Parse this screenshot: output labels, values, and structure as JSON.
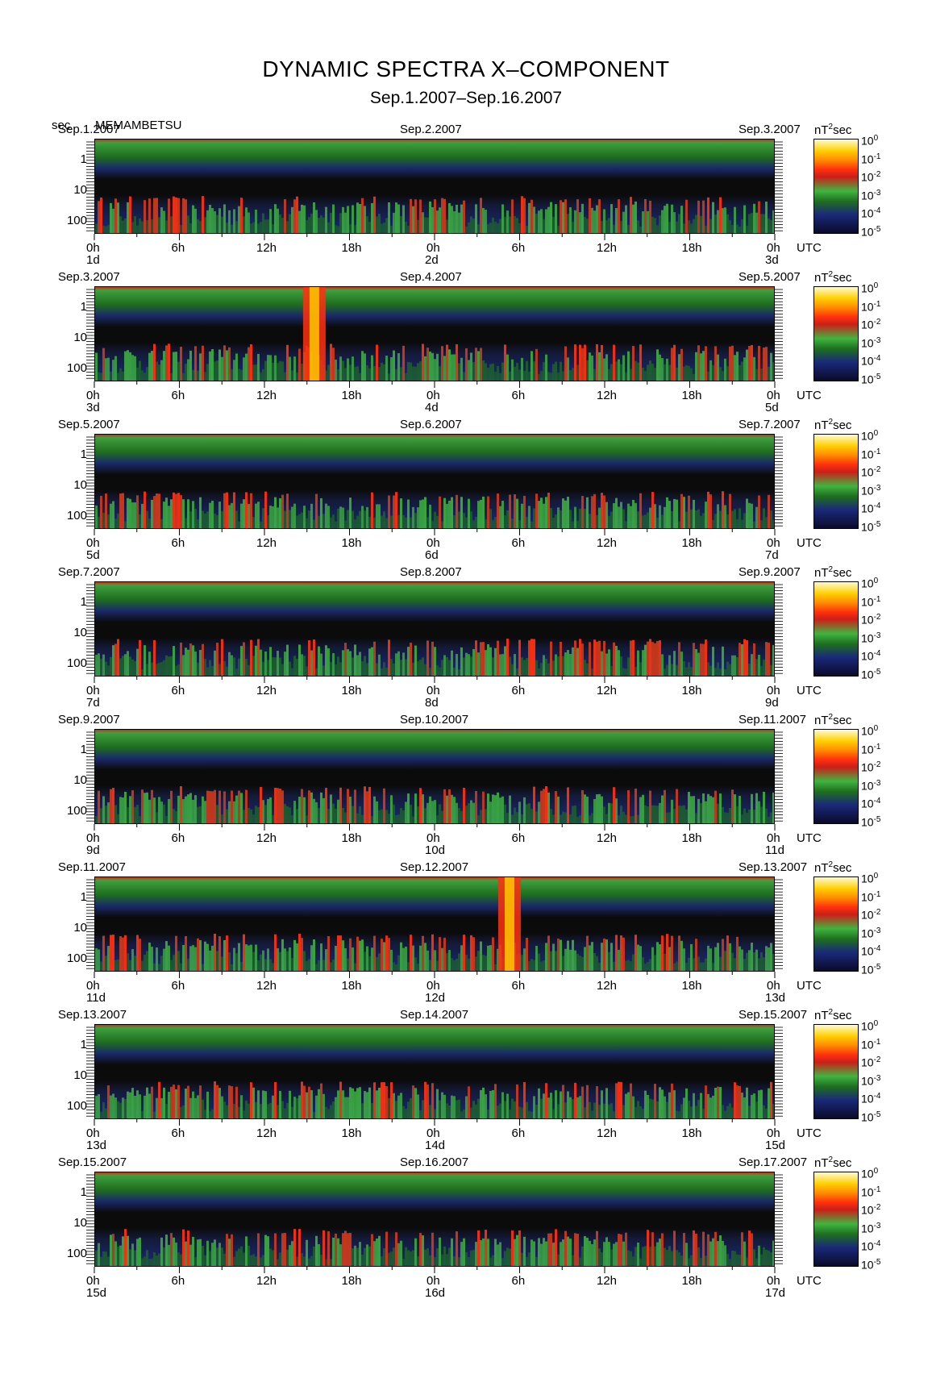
{
  "title": "DYNAMIC SPECTRA X–COMPONENT",
  "subtitle": "Sep.1.2007–Sep.16.2007",
  "y_unit_label": "sec",
  "station": "MEMAMBETSU",
  "power_unit": "nT",
  "power_unit_suffix": "sec",
  "utc_label": "UTC",
  "colors": {
    "scale": [
      "#0a0a28",
      "#1a2a7a",
      "#1f6f1f",
      "#3fb53f",
      "#d23a1a",
      "#ff3010",
      "#ff8a00",
      "#ffd000",
      "#fff7c0"
    ],
    "background": "#0b0b0b"
  },
  "chart_data": {
    "type": "heatmap",
    "yaxis": {
      "label": "sec",
      "scale": "log",
      "ticks": [
        "1",
        "10",
        "100"
      ]
    },
    "xaxis": {
      "ticks": [
        "0h",
        "6h",
        "12h",
        "18h",
        "0h",
        "6h",
        "12h",
        "18h",
        "0h"
      ]
    },
    "colorbar": {
      "scale": "log",
      "labels": [
        "0",
        "-1",
        "-2",
        "-3",
        "-4",
        "-5"
      ],
      "base": "10",
      "range": [
        1e-05,
        1
      ]
    },
    "panels": [
      {
        "date_left": "Sep.1.2007",
        "date_mid": "Sep.2.2007",
        "date_right": "Sep.3.2007",
        "day_left": "1d",
        "day_mid": "2d",
        "day_right": "3d",
        "events": []
      },
      {
        "date_left": "Sep.3.2007",
        "date_mid": "Sep.4.2007",
        "date_right": "Sep.5.2007",
        "day_left": "3d",
        "day_mid": "4d",
        "day_right": "5d",
        "events": [
          {
            "hour": 15.5,
            "intensity": "high"
          }
        ]
      },
      {
        "date_left": "Sep.5.2007",
        "date_mid": "Sep.6.2007",
        "date_right": "Sep.7.2007",
        "day_left": "5d",
        "day_mid": "6d",
        "day_right": "7d",
        "events": []
      },
      {
        "date_left": "Sep.7.2007",
        "date_mid": "Sep.8.2007",
        "date_right": "Sep.9.2007",
        "day_left": "7d",
        "day_mid": "8d",
        "day_right": "9d",
        "events": []
      },
      {
        "date_left": "Sep.9.2007",
        "date_mid": "Sep.10.2007",
        "date_right": "Sep.11.2007",
        "day_left": "9d",
        "day_mid": "10d",
        "day_right": "11d",
        "events": []
      },
      {
        "date_left": "Sep.11.2007",
        "date_mid": "Sep.12.2007",
        "date_right": "Sep.13.2007",
        "day_left": "11d",
        "day_mid": "12d",
        "day_right": "13d",
        "events": [
          {
            "hour": 29.3,
            "intensity": "high"
          }
        ]
      },
      {
        "date_left": "Sep.13.2007",
        "date_mid": "Sep.14.2007",
        "date_right": "Sep.15.2007",
        "day_left": "13d",
        "day_mid": "14d",
        "day_right": "15d",
        "events": []
      },
      {
        "date_left": "Sep.15.2007",
        "date_mid": "Sep.16.2007",
        "date_right": "Sep.17.2007",
        "day_left": "15d",
        "day_mid": "16d",
        "day_right": "17d",
        "events": []
      }
    ]
  }
}
